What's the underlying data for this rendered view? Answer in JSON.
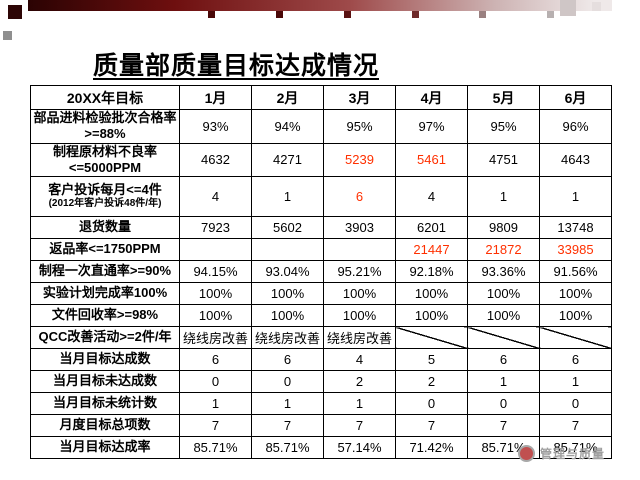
{
  "title": "质量部质量目标达成情况",
  "colors": {
    "alert": "#ff3000",
    "border": "#000000",
    "decor_dark": "#2d0505"
  },
  "table": {
    "headers": [
      "20XX年目标",
      "1月",
      "2月",
      "3月",
      "4月",
      "5月",
      "6月"
    ],
    "rows": [
      {
        "label": "部品进料检验批次合格率>=88%",
        "cells": [
          {
            "t": "93%"
          },
          {
            "t": "94%"
          },
          {
            "t": "95%"
          },
          {
            "t": "97%"
          },
          {
            "t": "95%"
          },
          {
            "t": "96%"
          }
        ]
      },
      {
        "label": "制程原材料不良率<=5000PPM",
        "cells": [
          {
            "t": "4632"
          },
          {
            "t": "4271"
          },
          {
            "t": "5239",
            "red": true
          },
          {
            "t": "5461",
            "red": true
          },
          {
            "t": "4751"
          },
          {
            "t": "4643"
          }
        ]
      },
      {
        "label": "客户投诉每月<=4件",
        "label2": "(2012年客户投诉48件/年)",
        "tall": true,
        "cells": [
          {
            "t": "4"
          },
          {
            "t": "1"
          },
          {
            "t": "6",
            "red": true
          },
          {
            "t": "4"
          },
          {
            "t": "1"
          },
          {
            "t": "1"
          }
        ]
      },
      {
        "label": "退货数量",
        "cells": [
          {
            "t": "7923"
          },
          {
            "t": "5602"
          },
          {
            "t": "3903"
          },
          {
            "t": "6201"
          },
          {
            "t": "9809"
          },
          {
            "t": "13748"
          }
        ]
      },
      {
        "label": "返品率<=1750PPM",
        "cells": [
          {
            "t": ""
          },
          {
            "t": ""
          },
          {
            "t": ""
          },
          {
            "t": "21447",
            "red": true
          },
          {
            "t": "21872",
            "red": true
          },
          {
            "t": "33985",
            "red": true
          }
        ]
      },
      {
        "label": "制程一次直通率>=90%",
        "cells": [
          {
            "t": "94.15%"
          },
          {
            "t": "93.04%"
          },
          {
            "t": "95.21%"
          },
          {
            "t": "92.18%"
          },
          {
            "t": "93.36%"
          },
          {
            "t": "91.56%"
          }
        ]
      },
      {
        "label": "实验计划完成率100%",
        "cells": [
          {
            "t": "100%"
          },
          {
            "t": "100%"
          },
          {
            "t": "100%"
          },
          {
            "t": "100%"
          },
          {
            "t": "100%"
          },
          {
            "t": "100%"
          }
        ]
      },
      {
        "label": "文件回收率>=98%",
        "cells": [
          {
            "t": "100%"
          },
          {
            "t": "100%"
          },
          {
            "t": "100%"
          },
          {
            "t": "100%"
          },
          {
            "t": "100%"
          },
          {
            "t": "100%"
          }
        ]
      },
      {
        "label": "QCC改善活动>=2件/年",
        "cells": [
          {
            "t": "绕线房改善",
            "small": true
          },
          {
            "t": "绕线房改善",
            "small": true
          },
          {
            "t": "绕线房改善",
            "small": true
          },
          {
            "slash": true
          },
          {
            "slash": true
          },
          {
            "slash": true
          }
        ]
      },
      {
        "label": "当月目标达成数",
        "cells": [
          {
            "t": "6"
          },
          {
            "t": "6"
          },
          {
            "t": "4"
          },
          {
            "t": "5"
          },
          {
            "t": "6"
          },
          {
            "t": "6"
          }
        ]
      },
      {
        "label": "当月目标未达成数",
        "cells": [
          {
            "t": "0"
          },
          {
            "t": "0"
          },
          {
            "t": "2"
          },
          {
            "t": "2"
          },
          {
            "t": "1"
          },
          {
            "t": "1"
          }
        ]
      },
      {
        "label": "当月目标未统计数",
        "cells": [
          {
            "t": "1"
          },
          {
            "t": "1"
          },
          {
            "t": "1"
          },
          {
            "t": "0"
          },
          {
            "t": "0"
          },
          {
            "t": "0"
          }
        ]
      },
      {
        "label": "月度目标总项数",
        "cells": [
          {
            "t": "7"
          },
          {
            "t": "7"
          },
          {
            "t": "7"
          },
          {
            "t": "7"
          },
          {
            "t": "7"
          },
          {
            "t": "7"
          }
        ]
      },
      {
        "label": "当月目标达成率",
        "cells": [
          {
            "t": "85.71%"
          },
          {
            "t": "85.71%"
          },
          {
            "t": "57.14%"
          },
          {
            "t": "71.42%"
          },
          {
            "t": "85.71%"
          },
          {
            "t": "85.71%"
          }
        ]
      }
    ]
  },
  "watermark": {
    "label": "管理与质量"
  }
}
